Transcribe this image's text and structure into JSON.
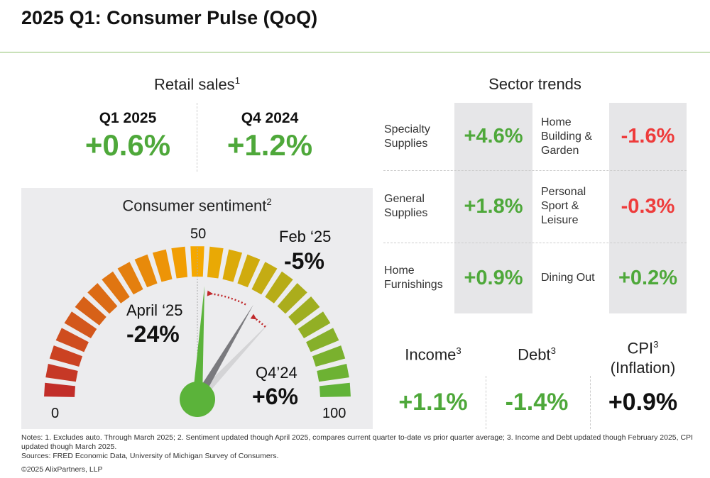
{
  "title": "2025 Q1: Consumer Pulse (QoQ)",
  "retail": {
    "heading": "Retail sales",
    "sup": "1",
    "q1_label": "Q1 2025",
    "q1_value": "+0.6%",
    "q4_label": "Q4 2024",
    "q4_value": "+1.2%"
  },
  "sentiment": {
    "heading": "Consumer sentiment",
    "sup": "2",
    "mid": "50",
    "min": "0",
    "max": "100",
    "april_label": "April ‘25",
    "april_value": "-24%",
    "feb_label": "Feb ‘25",
    "feb_value": "-5%",
    "q4_label": "Q4’24",
    "q4_value": "+6%"
  },
  "chart_data": {
    "type": "gauge",
    "title": "Consumer sentiment",
    "range": [
      0,
      100
    ],
    "ticks": [
      "0",
      "50",
      "100"
    ],
    "needles": [
      {
        "name": "Q4'24",
        "value": 74,
        "color": "#d4d4d6"
      },
      {
        "name": "Feb '25",
        "value": 67,
        "color": "#7a7a7e"
      },
      {
        "name": "April '25",
        "value": 52,
        "color": "#5bb33a"
      }
    ],
    "colors": {
      "low": "#c0292b",
      "mid": "#f5a800",
      "high": "#5bb33a"
    }
  },
  "sectors": {
    "heading": "Sector trends",
    "items": [
      {
        "label": "Specialty Supplies",
        "value": "+4.6%"
      },
      {
        "label": "Home Building & Garden",
        "value": "-1.6%"
      },
      {
        "label": "General Supplies",
        "value": "+1.8%"
      },
      {
        "label": "Personal Sport & Leisure",
        "value": "-0.3%"
      },
      {
        "label": "Home Furnishings",
        "value": "+0.9%"
      },
      {
        "label": "Dining Out",
        "value": "+0.2%"
      }
    ]
  },
  "bottom": {
    "income_label": "Income",
    "income_sup": "3",
    "income_value": "+1.1%",
    "debt_label": "Debt",
    "debt_sup": "3",
    "debt_value": "-1.4%",
    "cpi_label": "CPI",
    "cpi_sup": "3",
    "cpi_sub": "(Inflation)",
    "cpi_value": "+0.9%"
  },
  "notes": {
    "line1": "Notes: 1. Excludes auto. Through March 2025; 2. Sentiment updated though April 2025, compares current quarter to-date vs prior quarter average; 3. Income and Debt updated though February 2025, CPI updated though March 2025.",
    "sources": "Sources: FRED Economic Data, University of Michigan Survey of Consumers.",
    "copyright": "©2025 AlixPartners, LLP"
  }
}
